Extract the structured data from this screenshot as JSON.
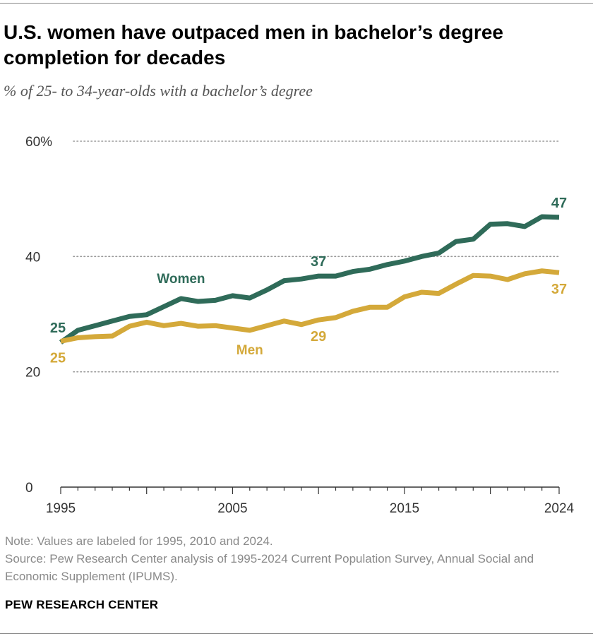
{
  "title": "U.S. women have outpaced men in bachelor’s degree completion for decades",
  "subtitle": "% of 25- to 34-year-olds with a bachelor’s degree",
  "note": "Note: Values are labeled for 1995, 2010 and 2024.",
  "source": "Source: Pew Research Center analysis of 1995-2024 Current Population Survey, Annual Social and Economic Supplement (IPUMS).",
  "brand": "PEW RESEARCH CENTER",
  "colors": {
    "women": "#2f6b59",
    "men": "#d4a93a",
    "axis": "#333333",
    "grid": "#9a9a9a"
  },
  "chart_data": {
    "type": "line",
    "x": [
      1995,
      1996,
      1997,
      1998,
      1999,
      2000,
      2001,
      2002,
      2003,
      2004,
      2005,
      2006,
      2007,
      2008,
      2009,
      2010,
      2011,
      2012,
      2013,
      2014,
      2015,
      2016,
      2017,
      2018,
      2019,
      2020,
      2021,
      2022,
      2023,
      2024
    ],
    "ylim": [
      0,
      60
    ],
    "yticks": [
      {
        "value": 0,
        "label": "0"
      },
      {
        "value": 20,
        "label": "20"
      },
      {
        "value": 40,
        "label": "40"
      },
      {
        "value": 60,
        "label": "60%"
      }
    ],
    "xticks": [
      {
        "value": 1995,
        "label": "1995"
      },
      {
        "value": 2005,
        "label": "2005"
      },
      {
        "value": 2015,
        "label": "2015"
      },
      {
        "value": 2024,
        "label": "2024"
      }
    ],
    "grid": true,
    "series": [
      {
        "name": "Women",
        "color": "#2f6b59",
        "values": [
          25.1,
          27.2,
          28.0,
          28.8,
          29.6,
          29.9,
          31.3,
          32.7,
          32.2,
          32.4,
          33.2,
          32.8,
          34.2,
          35.8,
          36.1,
          36.6,
          36.6,
          37.4,
          37.8,
          38.6,
          39.2,
          40.0,
          40.6,
          42.6,
          43.0,
          45.6,
          45.7,
          45.2,
          46.9,
          46.8
        ],
        "labels": [
          {
            "index": 0,
            "text": "25",
            "pos": "above"
          },
          {
            "index": 15,
            "text": "37",
            "pos": "above"
          },
          {
            "index": 29,
            "text": "47",
            "pos": "above"
          }
        ],
        "name_label": {
          "index": 7,
          "pos": "above"
        }
      },
      {
        "name": "Men",
        "color": "#d4a93a",
        "values": [
          25.3,
          25.9,
          26.1,
          26.2,
          27.9,
          28.6,
          28.0,
          28.4,
          27.9,
          28.0,
          27.6,
          27.2,
          28.0,
          28.8,
          28.2,
          29.0,
          29.4,
          30.5,
          31.2,
          31.2,
          33.0,
          33.8,
          33.6,
          35.2,
          36.7,
          36.6,
          36.0,
          37.0,
          37.5,
          37.2
        ],
        "labels": [
          {
            "index": 0,
            "text": "25",
            "pos": "below"
          },
          {
            "index": 15,
            "text": "29",
            "pos": "below"
          },
          {
            "index": 29,
            "text": "37",
            "pos": "below"
          }
        ],
        "name_label": {
          "index": 11,
          "pos": "below"
        }
      }
    ]
  }
}
